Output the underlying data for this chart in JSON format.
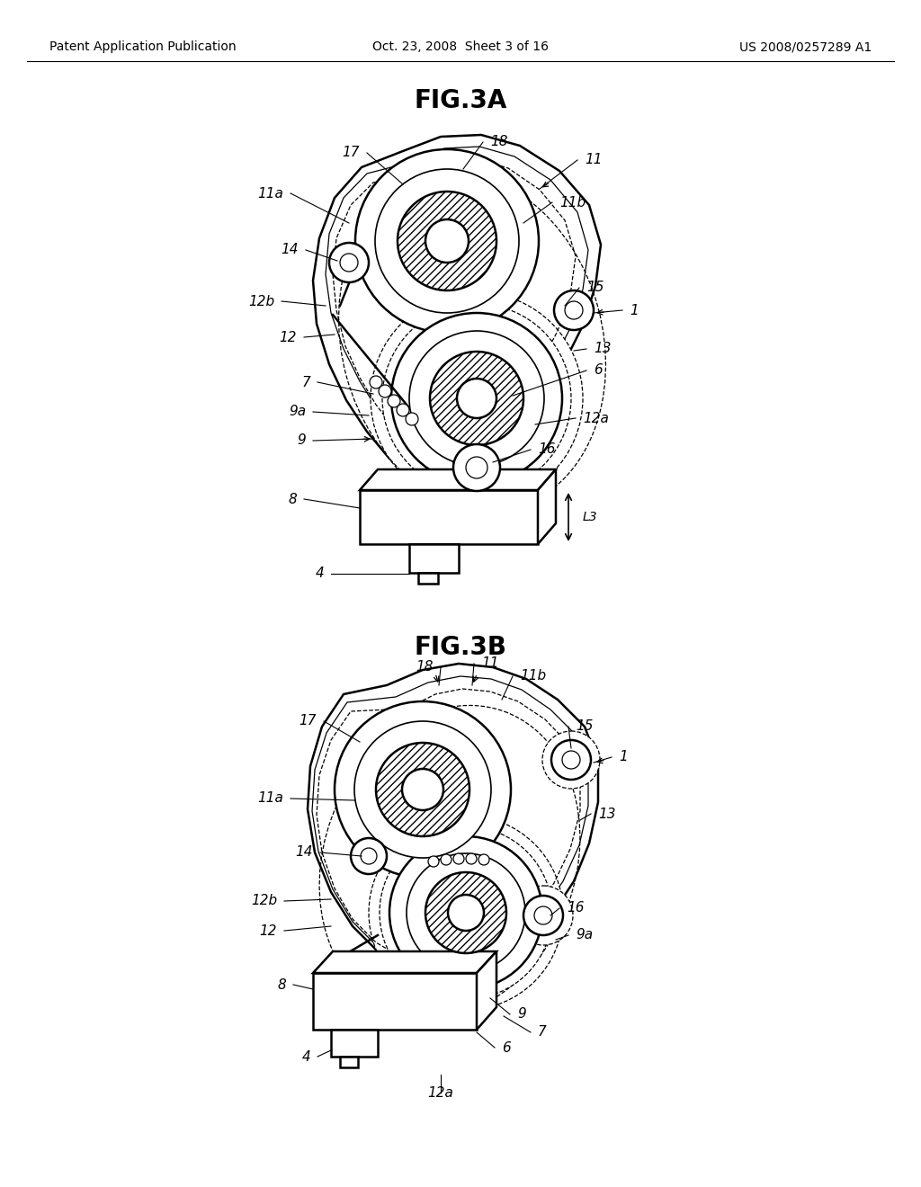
{
  "background_color": "#ffffff",
  "header_left": "Patent Application Publication",
  "header_center": "Oct. 23, 2008  Sheet 3 of 16",
  "header_right": "US 2008/0257289 A1",
  "fig3a_title": "FIG.3A",
  "fig3b_title": "FIG.3B",
  "line_color": "#000000",
  "label_fontsize": 11,
  "header_fontsize": 10,
  "title_fontsize": 20
}
